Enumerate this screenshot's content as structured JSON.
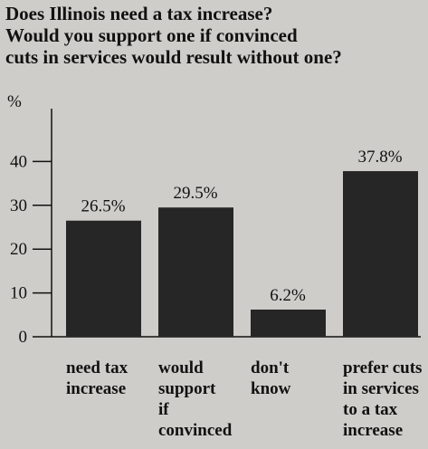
{
  "chart_data": {
    "type": "bar",
    "title": "Does Illinois need a tax increase?\nWould you support one if convinced\ncuts in services would result without one?",
    "y_label": "%",
    "categories": [
      "need tax\nincrease",
      "would\nsupport\nif\nconvinced",
      "don't\nknow",
      "prefer cuts\nin services\nto a tax\nincrease"
    ],
    "values": [
      26.5,
      29.5,
      6.2,
      37.8
    ],
    "value_labels": [
      "26.5%",
      "29.5%",
      "6.2%",
      "37.8%"
    ],
    "color": "#262626",
    "ylim": [
      0,
      50
    ],
    "yticks": [
      0,
      10,
      20,
      30,
      40
    ],
    "grid": false
  }
}
